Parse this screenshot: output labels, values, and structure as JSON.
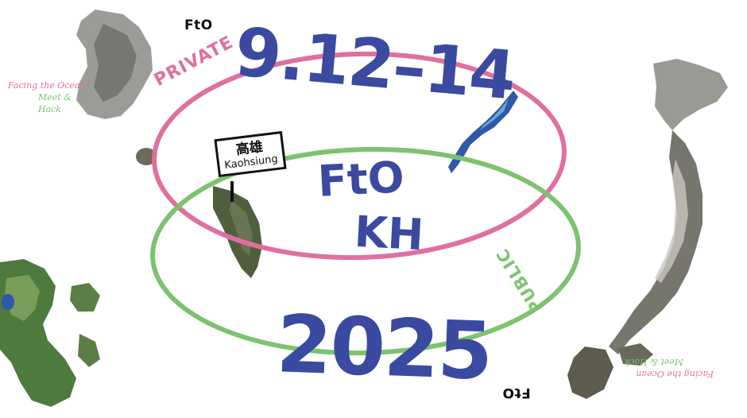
{
  "logo": {
    "top": "FtO",
    "bottom": "FtO"
  },
  "tagline": {
    "line1": "Facing the Ocean",
    "line2": "Meet & Hack"
  },
  "tagline_flipped": {
    "line1": "Facing the Ocean",
    "line2": "Meet & Hack"
  },
  "event": {
    "dates": "9.12–14",
    "title_line1": "FtO",
    "title_line2": "KH",
    "year": "2025"
  },
  "rings": {
    "private_label": "PRIVATE",
    "public_label": "PUBLIC"
  },
  "sign": {
    "chinese": "高雄",
    "english": "Kaohsiung"
  },
  "colors": {
    "primary_blue": "#3a4aa0",
    "private_pink": "#e06fa0",
    "public_green": "#7cc36e",
    "text_black": "#111111",
    "terrain_dark": "#5f5f4f",
    "terrain_green": "#4f7a3e",
    "okinawa_blue": "#2f58a8"
  }
}
